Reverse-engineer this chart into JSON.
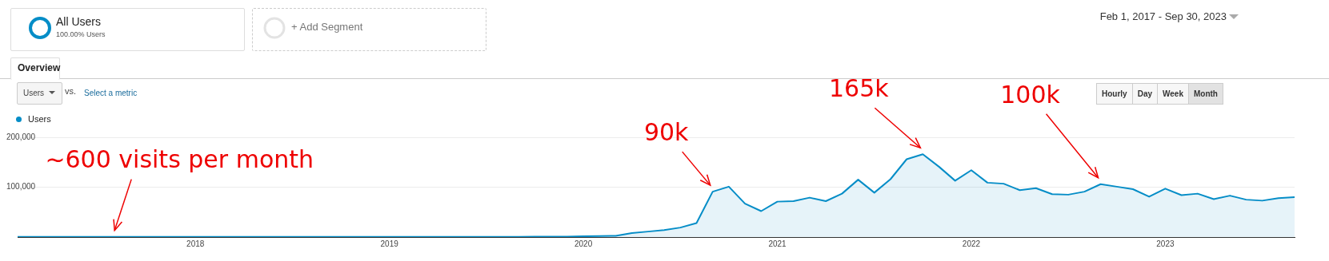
{
  "chart_data": {
    "type": "area",
    "subtitle": "Feb 1, 2017 - Sep 30, 2023",
    "x": [
      "2017-02",
      "2017-03",
      "2017-04",
      "2017-05",
      "2017-06",
      "2017-07",
      "2017-08",
      "2017-09",
      "2017-10",
      "2017-11",
      "2017-12",
      "2018-01",
      "2018-02",
      "2018-03",
      "2018-04",
      "2018-05",
      "2018-06",
      "2018-07",
      "2018-08",
      "2018-09",
      "2018-10",
      "2018-11",
      "2018-12",
      "2019-01",
      "2019-02",
      "2019-03",
      "2019-04",
      "2019-05",
      "2019-06",
      "2019-07",
      "2019-08",
      "2019-09",
      "2019-10",
      "2019-11",
      "2019-12",
      "2020-01",
      "2020-02",
      "2020-03",
      "2020-04",
      "2020-05",
      "2020-06",
      "2020-07",
      "2020-08",
      "2020-09",
      "2020-10",
      "2020-11",
      "2020-12",
      "2021-01",
      "2021-02",
      "2021-03",
      "2021-04",
      "2021-05",
      "2021-06",
      "2021-07",
      "2021-08",
      "2021-09",
      "2021-10",
      "2021-11",
      "2021-12",
      "2022-01",
      "2022-02",
      "2022-03",
      "2022-04",
      "2022-05",
      "2022-06",
      "2022-07",
      "2022-08",
      "2022-09",
      "2022-10",
      "2022-11",
      "2022-12",
      "2023-01",
      "2023-02",
      "2023-03",
      "2023-04",
      "2023-05",
      "2023-06",
      "2023-07",
      "2023-08",
      "2023-09"
    ],
    "series": [
      {
        "name": "Users",
        "color": "#058dc7",
        "values": [
          600,
          600,
          600,
          600,
          600,
          600,
          600,
          600,
          600,
          600,
          600,
          600,
          600,
          600,
          600,
          600,
          600,
          600,
          600,
          600,
          600,
          600,
          600,
          600,
          600,
          600,
          600,
          600,
          600,
          600,
          600,
          600,
          1000,
          1000,
          1000,
          1500,
          2000,
          2500,
          8000,
          11000,
          14000,
          19000,
          28000,
          91000,
          101000,
          67000,
          52000,
          71000,
          72000,
          79000,
          72000,
          87000,
          115000,
          89000,
          116000,
          156000,
          166000,
          141000,
          113000,
          134000,
          109000,
          107000,
          94000,
          98000,
          86000,
          85000,
          91000,
          106000,
          101000,
          96000,
          81000,
          97000,
          84000,
          87000,
          76000,
          83000,
          75000,
          73000,
          78000,
          80000
        ]
      }
    ],
    "xlim": [
      "2017-02",
      "2023-09"
    ],
    "xticks": [
      {
        "value": "2018-01",
        "label": "2018"
      },
      {
        "value": "2019-01",
        "label": "2019"
      },
      {
        "value": "2020-01",
        "label": "2020"
      },
      {
        "value": "2021-01",
        "label": "2021"
      },
      {
        "value": "2022-01",
        "label": "2022"
      },
      {
        "value": "2023-01",
        "label": "2023"
      }
    ],
    "ylim": [
      0,
      200000
    ],
    "yticks": [
      {
        "value": 100000,
        "label": "100,000"
      },
      {
        "value": 200000,
        "label": "200,000"
      }
    ],
    "grid": "y",
    "legend": "top left",
    "marker": "none",
    "line_style": "solid",
    "annotations": [
      "All Users",
      "100.00% Users",
      "+ Add Segment",
      "Overview",
      "Users",
      "vs.",
      "Select a metric",
      "Hourly",
      "Day",
      "Week",
      "Month",
      {
        "text": "~600 visits per month",
        "x": "2017-08",
        "y": 600
      },
      {
        "text": "90k",
        "x": "2020-09",
        "y": 91000
      },
      {
        "text": "165k",
        "x": "2021-10",
        "y": 166000
      },
      {
        "text": "100k",
        "x": "2022-09",
        "y": 106000
      }
    ]
  }
}
